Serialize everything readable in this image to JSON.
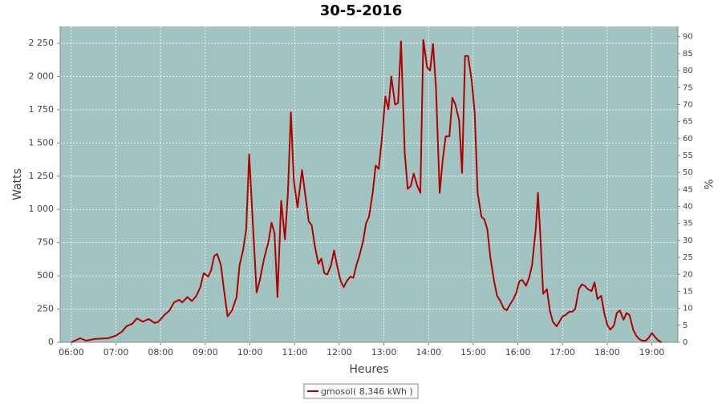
{
  "chart_data": {
    "type": "line",
    "title": "30-5-2016",
    "x_label": "Heures",
    "y_label": "Watts",
    "y2_label": "%",
    "x": [
      "06:00",
      "06:12",
      "06:20",
      "06:31",
      "06:49",
      "07:00",
      "07:08",
      "07:14",
      "07:22",
      "07:28",
      "07:36",
      "07:44",
      "07:52",
      "07:57",
      "08:05",
      "08:12",
      "08:18",
      "08:25",
      "08:29",
      "08:36",
      "08:42",
      "08:48",
      "08:53",
      "08:58",
      "09:04",
      "09:08",
      "09:12",
      "09:16",
      "09:21",
      "09:25",
      "09:30",
      "09:36",
      "09:42",
      "09:46",
      "09:51",
      "09:55",
      "09:59",
      "10:04",
      "10:09",
      "10:13",
      "10:19",
      "10:25",
      "10:29",
      "10:33",
      "10:37",
      "10:42",
      "10:47",
      "10:51",
      "10:55",
      "10:59",
      "11:04",
      "11:10",
      "11:14",
      "11:19",
      "11:23",
      "11:27",
      "11:32",
      "11:36",
      "11:40",
      "11:44",
      "11:49",
      "11:53",
      "11:57",
      "12:02",
      "12:06",
      "12:10",
      "12:15",
      "12:19",
      "12:23",
      "12:27",
      "12:32",
      "12:36",
      "12:40",
      "12:45",
      "12:49",
      "12:53",
      "12:57",
      "13:02",
      "13:06",
      "13:10",
      "13:15",
      "13:19",
      "13:23",
      "13:28",
      "13:32",
      "13:36",
      "13:40",
      "13:45",
      "13:49",
      "13:53",
      "13:58",
      "14:02",
      "14:06",
      "14:10",
      "14:15",
      "14:19",
      "14:23",
      "14:28",
      "14:32",
      "14:36",
      "14:41",
      "14:45",
      "14:49",
      "14:53",
      "14:58",
      "15:02",
      "15:06",
      "15:11",
      "15:15",
      "15:19",
      "15:23",
      "15:28",
      "15:32",
      "15:36",
      "15:41",
      "15:45",
      "15:49",
      "15:54",
      "15:58",
      "16:02",
      "16:06",
      "16:11",
      "16:15",
      "16:19",
      "16:24",
      "16:27",
      "16:30",
      "16:34",
      "16:39",
      "16:43",
      "16:47",
      "16:52",
      "16:56",
      "17:00",
      "17:04",
      "17:09",
      "17:13",
      "17:17",
      "17:22",
      "17:26",
      "17:30",
      "17:34",
      "17:39",
      "17:43",
      "17:47",
      "17:52",
      "17:56",
      "18:00",
      "18:04",
      "18:09",
      "18:13",
      "18:17",
      "18:22",
      "18:26",
      "18:30",
      "18:35",
      "18:39",
      "18:43",
      "18:47",
      "18:52",
      "18:56",
      "19:00",
      "19:05",
      "19:09",
      "19:13"
    ],
    "series": [
      {
        "name": "gmosol( 8,346 kWh )",
        "color": "#b00000",
        "values": [
          0,
          30,
          12,
          25,
          30,
          50,
          80,
          120,
          140,
          180,
          155,
          175,
          145,
          155,
          205,
          240,
          300,
          320,
          300,
          340,
          310,
          350,
          410,
          520,
          495,
          545,
          650,
          665,
          580,
          400,
          195,
          240,
          340,
          580,
          700,
          850,
          1415,
          880,
          375,
          460,
          630,
          760,
          900,
          820,
          340,
          1065,
          775,
          1125,
          1730,
          1215,
          1015,
          1295,
          1125,
          910,
          880,
          730,
          590,
          630,
          520,
          510,
          580,
          690,
          580,
          460,
          415,
          460,
          495,
          485,
          580,
          650,
          760,
          895,
          945,
          1125,
          1330,
          1305,
          1520,
          1850,
          1755,
          2000,
          1790,
          1800,
          2265,
          1430,
          1155,
          1175,
          1270,
          1175,
          1125,
          2275,
          2070,
          2045,
          2245,
          1910,
          1125,
          1370,
          1550,
          1550,
          1840,
          1790,
          1670,
          1275,
          2155,
          2155,
          1970,
          1730,
          1125,
          945,
          925,
          850,
          640,
          460,
          350,
          315,
          255,
          240,
          280,
          325,
          375,
          460,
          470,
          425,
          485,
          580,
          850,
          1125,
          820,
          365,
          400,
          240,
          155,
          120,
          155,
          195,
          205,
          230,
          230,
          250,
          400,
          435,
          425,
          400,
          385,
          450,
          325,
          350,
          220,
          135,
          95,
          125,
          220,
          240,
          170,
          220,
          205,
          95,
          50,
          25,
          12,
          12,
          35,
          70,
          35,
          12,
          0
        ]
      }
    ],
    "xlim": [
      "05:45",
      "19:35"
    ],
    "xticks": [
      "06:00",
      "07:00",
      "08:00",
      "09:00",
      "10:00",
      "11:00",
      "12:00",
      "13:00",
      "14:00",
      "15:00",
      "16:00",
      "17:00",
      "18:00",
      "19:00"
    ],
    "ylim": [
      0,
      2377
    ],
    "yticks": [
      0,
      250,
      500,
      750,
      {
        "value": 1000,
        "label": "1 000"
      },
      {
        "value": 1250,
        "label": "1 250"
      },
      {
        "value": 1500,
        "label": "1 500"
      },
      {
        "value": 1750,
        "label": "1 750"
      },
      {
        "value": 2000,
        "label": "2 000"
      },
      {
        "value": 2250,
        "label": "2 250"
      }
    ],
    "y2lim": [
      0,
      93
    ],
    "y2ticks": [
      0,
      5,
      10,
      15,
      20,
      25,
      30,
      35,
      40,
      45,
      50,
      55,
      60,
      65,
      70,
      75,
      80,
      85,
      90
    ],
    "grid": true
  }
}
